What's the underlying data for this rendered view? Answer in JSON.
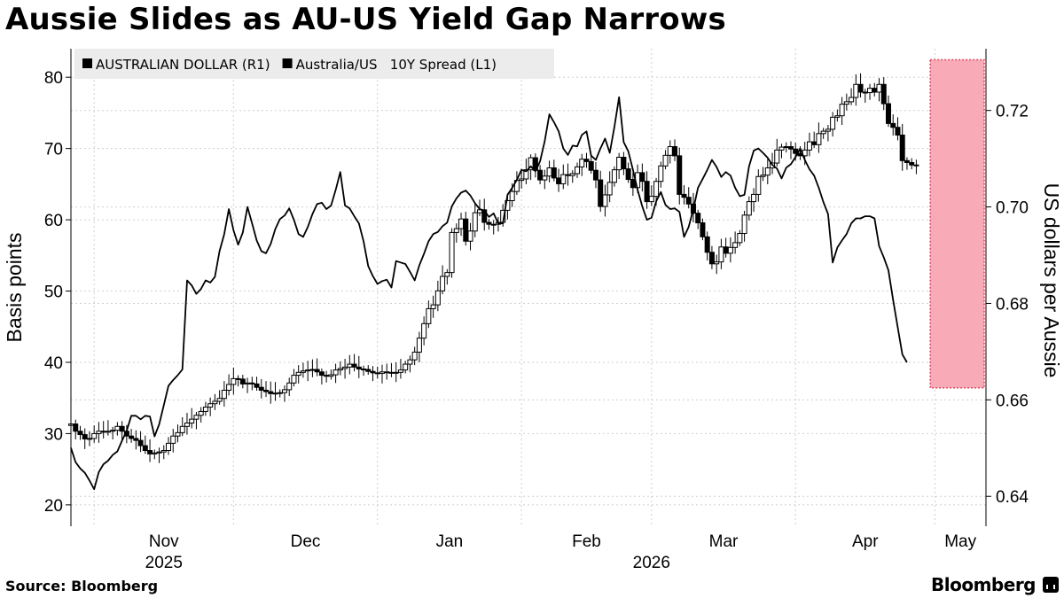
{
  "title": "Aussie Slides as AU-US Yield Gap Narrows",
  "source": "Source: Bloomberg",
  "brand": "Bloomberg",
  "chart_data": {
    "type": "line",
    "title": "Aussie Slides as AU-US Yield Gap Narrows",
    "legend_position": "top-left",
    "grid": true,
    "x_start": "2025-10-27",
    "x_end": "2026-05-12",
    "x_ticks": [
      {
        "label": "Nov",
        "date": "2025-11-01"
      },
      {
        "label": "Dec",
        "date": "2025-12-01"
      },
      {
        "label": "Jan",
        "date": "2026-01-01"
      },
      {
        "label": "Feb",
        "date": "2026-02-01"
      },
      {
        "label": "Mar",
        "date": "2026-03-01"
      },
      {
        "label": "Apr",
        "date": "2026-04-01"
      },
      {
        "label": "May",
        "date": "2026-05-01"
      }
    ],
    "year_labels": [
      {
        "label": "2025",
        "date": "2025-11-16"
      },
      {
        "label": "2026",
        "date": "2026-03-01"
      }
    ],
    "left_axis": {
      "label": "Basis points",
      "ylim": [
        17,
        84
      ],
      "ticks": [
        20,
        30,
        40,
        50,
        60,
        70,
        80
      ]
    },
    "right_axis": {
      "label": "US dollars per Aussie",
      "ylim": [
        0.6338,
        0.7328
      ],
      "ticks": [
        0.64,
        0.66,
        0.68,
        0.7,
        0.72
      ],
      "tick_labels": [
        "0.64",
        "0.66",
        "0.68",
        "0.70",
        "0.72"
      ]
    },
    "highlight": {
      "x_start": "2026-04-30",
      "x_end": "2026-05-12",
      "y_range_right": [
        0.6625,
        0.7305
      ],
      "color": "#f8a5b3"
    },
    "series": [
      {
        "name": "AUSTRALIAN DOLLAR (R1)",
        "kind": "candlestick",
        "axis": "right",
        "start_date": "2025-10-27",
        "close": [
          0.655,
          0.6535,
          0.6528,
          0.6519,
          0.652,
          0.653,
          0.6535,
          0.6533,
          0.6535,
          0.6537,
          0.6545,
          0.6535,
          0.6525,
          0.652,
          0.6516,
          0.6505,
          0.6495,
          0.6488,
          0.649,
          0.6492,
          0.6495,
          0.651,
          0.6525,
          0.6532,
          0.6545,
          0.6552,
          0.656,
          0.6568,
          0.6576,
          0.6585,
          0.6592,
          0.6597,
          0.6603,
          0.662,
          0.6632,
          0.6644,
          0.6643,
          0.6633,
          0.6635,
          0.6633,
          0.6626,
          0.662,
          0.6617,
          0.6613,
          0.6614,
          0.6615,
          0.6621,
          0.6635,
          0.6651,
          0.6657,
          0.666,
          0.6662,
          0.6663,
          0.6658,
          0.6651,
          0.6649,
          0.6652,
          0.6662,
          0.6665,
          0.6668,
          0.6674,
          0.6668,
          0.6664,
          0.6663,
          0.6659,
          0.6656,
          0.6655,
          0.6658,
          0.6657,
          0.6656,
          0.6657,
          0.6662,
          0.6674,
          0.6683,
          0.6699,
          0.6728,
          0.6758,
          0.6789,
          0.6797,
          0.6826,
          0.6856,
          0.6864,
          0.6947,
          0.6955,
          0.6975,
          0.6929,
          0.695,
          0.6988,
          0.6994,
          0.6968,
          0.6964,
          0.6964,
          0.6968,
          0.6993,
          0.7013,
          0.7032,
          0.7055,
          0.7058,
          0.7077,
          0.7102,
          0.7076,
          0.7056,
          0.7064,
          0.7081,
          0.706,
          0.7048,
          0.7067,
          0.7065,
          0.7069,
          0.7083,
          0.7099,
          0.7094,
          0.7076,
          0.7056,
          0.7001,
          0.7025,
          0.7051,
          0.7077,
          0.7103,
          0.7079,
          0.7057,
          0.704,
          0.7071,
          0.7053,
          0.7011,
          0.7022,
          0.7053,
          0.7085,
          0.7107,
          0.7125,
          0.7106,
          0.7026,
          0.702,
          0.7006,
          0.6987,
          0.6967,
          0.6938,
          0.6906,
          0.6882,
          0.6886,
          0.6917,
          0.6904,
          0.6916,
          0.6926,
          0.6945,
          0.6983,
          0.7011,
          0.7026,
          0.7063,
          0.7066,
          0.7081,
          0.7091,
          0.7118,
          0.7124,
          0.7125,
          0.712,
          0.7111,
          0.7106,
          0.7118,
          0.7135,
          0.7129,
          0.7152,
          0.7157,
          0.7161,
          0.7186,
          0.7189,
          0.7213,
          0.7218,
          0.7227,
          0.7254,
          0.7238,
          0.7237,
          0.7246,
          0.7238,
          0.7254,
          0.7214,
          0.7173,
          0.7165,
          0.7149,
          0.7096,
          0.7092,
          0.7087,
          0.7087
        ]
      },
      {
        "name": "Australia/US   10Y Spread (L1)",
        "kind": "line",
        "axis": "left",
        "start_date": "2025-10-27",
        "values": [
          28,
          26,
          25.1,
          24.5,
          23.4,
          22.2,
          24.6,
          25.7,
          26.2,
          27,
          27.5,
          29,
          30.4,
          32.5,
          32.5,
          32,
          32.5,
          32.4,
          29.6,
          31.3,
          34,
          36.7,
          37.5,
          38.2,
          39,
          51.5,
          50.8,
          49.6,
          50.3,
          51.5,
          51.2,
          52,
          55.6,
          58,
          61.5,
          58.5,
          56.5,
          58.2,
          61.8,
          59.5,
          57.1,
          55.6,
          55.3,
          56.6,
          58.7,
          60.1,
          60.6,
          61.6,
          60,
          58,
          57.6,
          59,
          60.8,
          62.2,
          62.4,
          61.5,
          62,
          64.2,
          66.7,
          62,
          61.6,
          60.5,
          59.5,
          57,
          53.5,
          52.1,
          51,
          51.4,
          51.6,
          50.5,
          54.2,
          54,
          53.8,
          52.7,
          51.5,
          53.6,
          55.2,
          57,
          58,
          58.3,
          59.1,
          59.6,
          61.9,
          63,
          63.8,
          64.1,
          63.4,
          62.3,
          61.5,
          61.3,
          60.4,
          60.9,
          59.5,
          59.5,
          63.5,
          64.5,
          65.6,
          67,
          66.8,
          67.5,
          66.8,
          68.2,
          71,
          74.8,
          73.7,
          72.4,
          70,
          69.1,
          70.4,
          70.3,
          71.9,
          72.4,
          69,
          68.4,
          70,
          71.4,
          69.4,
          73,
          77.2,
          70.9,
          69.6,
          67,
          64.2,
          61.9,
          60,
          60.3,
          62.6,
          63.9,
          62.1,
          61.5,
          61.6,
          61.1,
          57.6,
          59,
          61.5,
          64.5,
          65.7,
          67,
          68.4,
          67.4,
          66,
          66.7,
          66.2,
          64.5,
          63.3,
          63.5,
          67.5,
          69.7,
          70,
          69.4,
          68.7,
          67.7,
          67.2,
          65.8,
          67.3,
          67.8,
          68.8,
          70,
          68.4,
          67.1,
          66.2,
          64.5,
          62.5,
          60.8,
          54,
          56.1,
          57.1,
          58,
          59.5,
          60.2,
          60.2,
          60.5,
          60.5,
          60.2,
          56.3,
          54.7,
          52.9,
          48.8,
          44.9,
          41.1,
          40
        ]
      }
    ]
  }
}
